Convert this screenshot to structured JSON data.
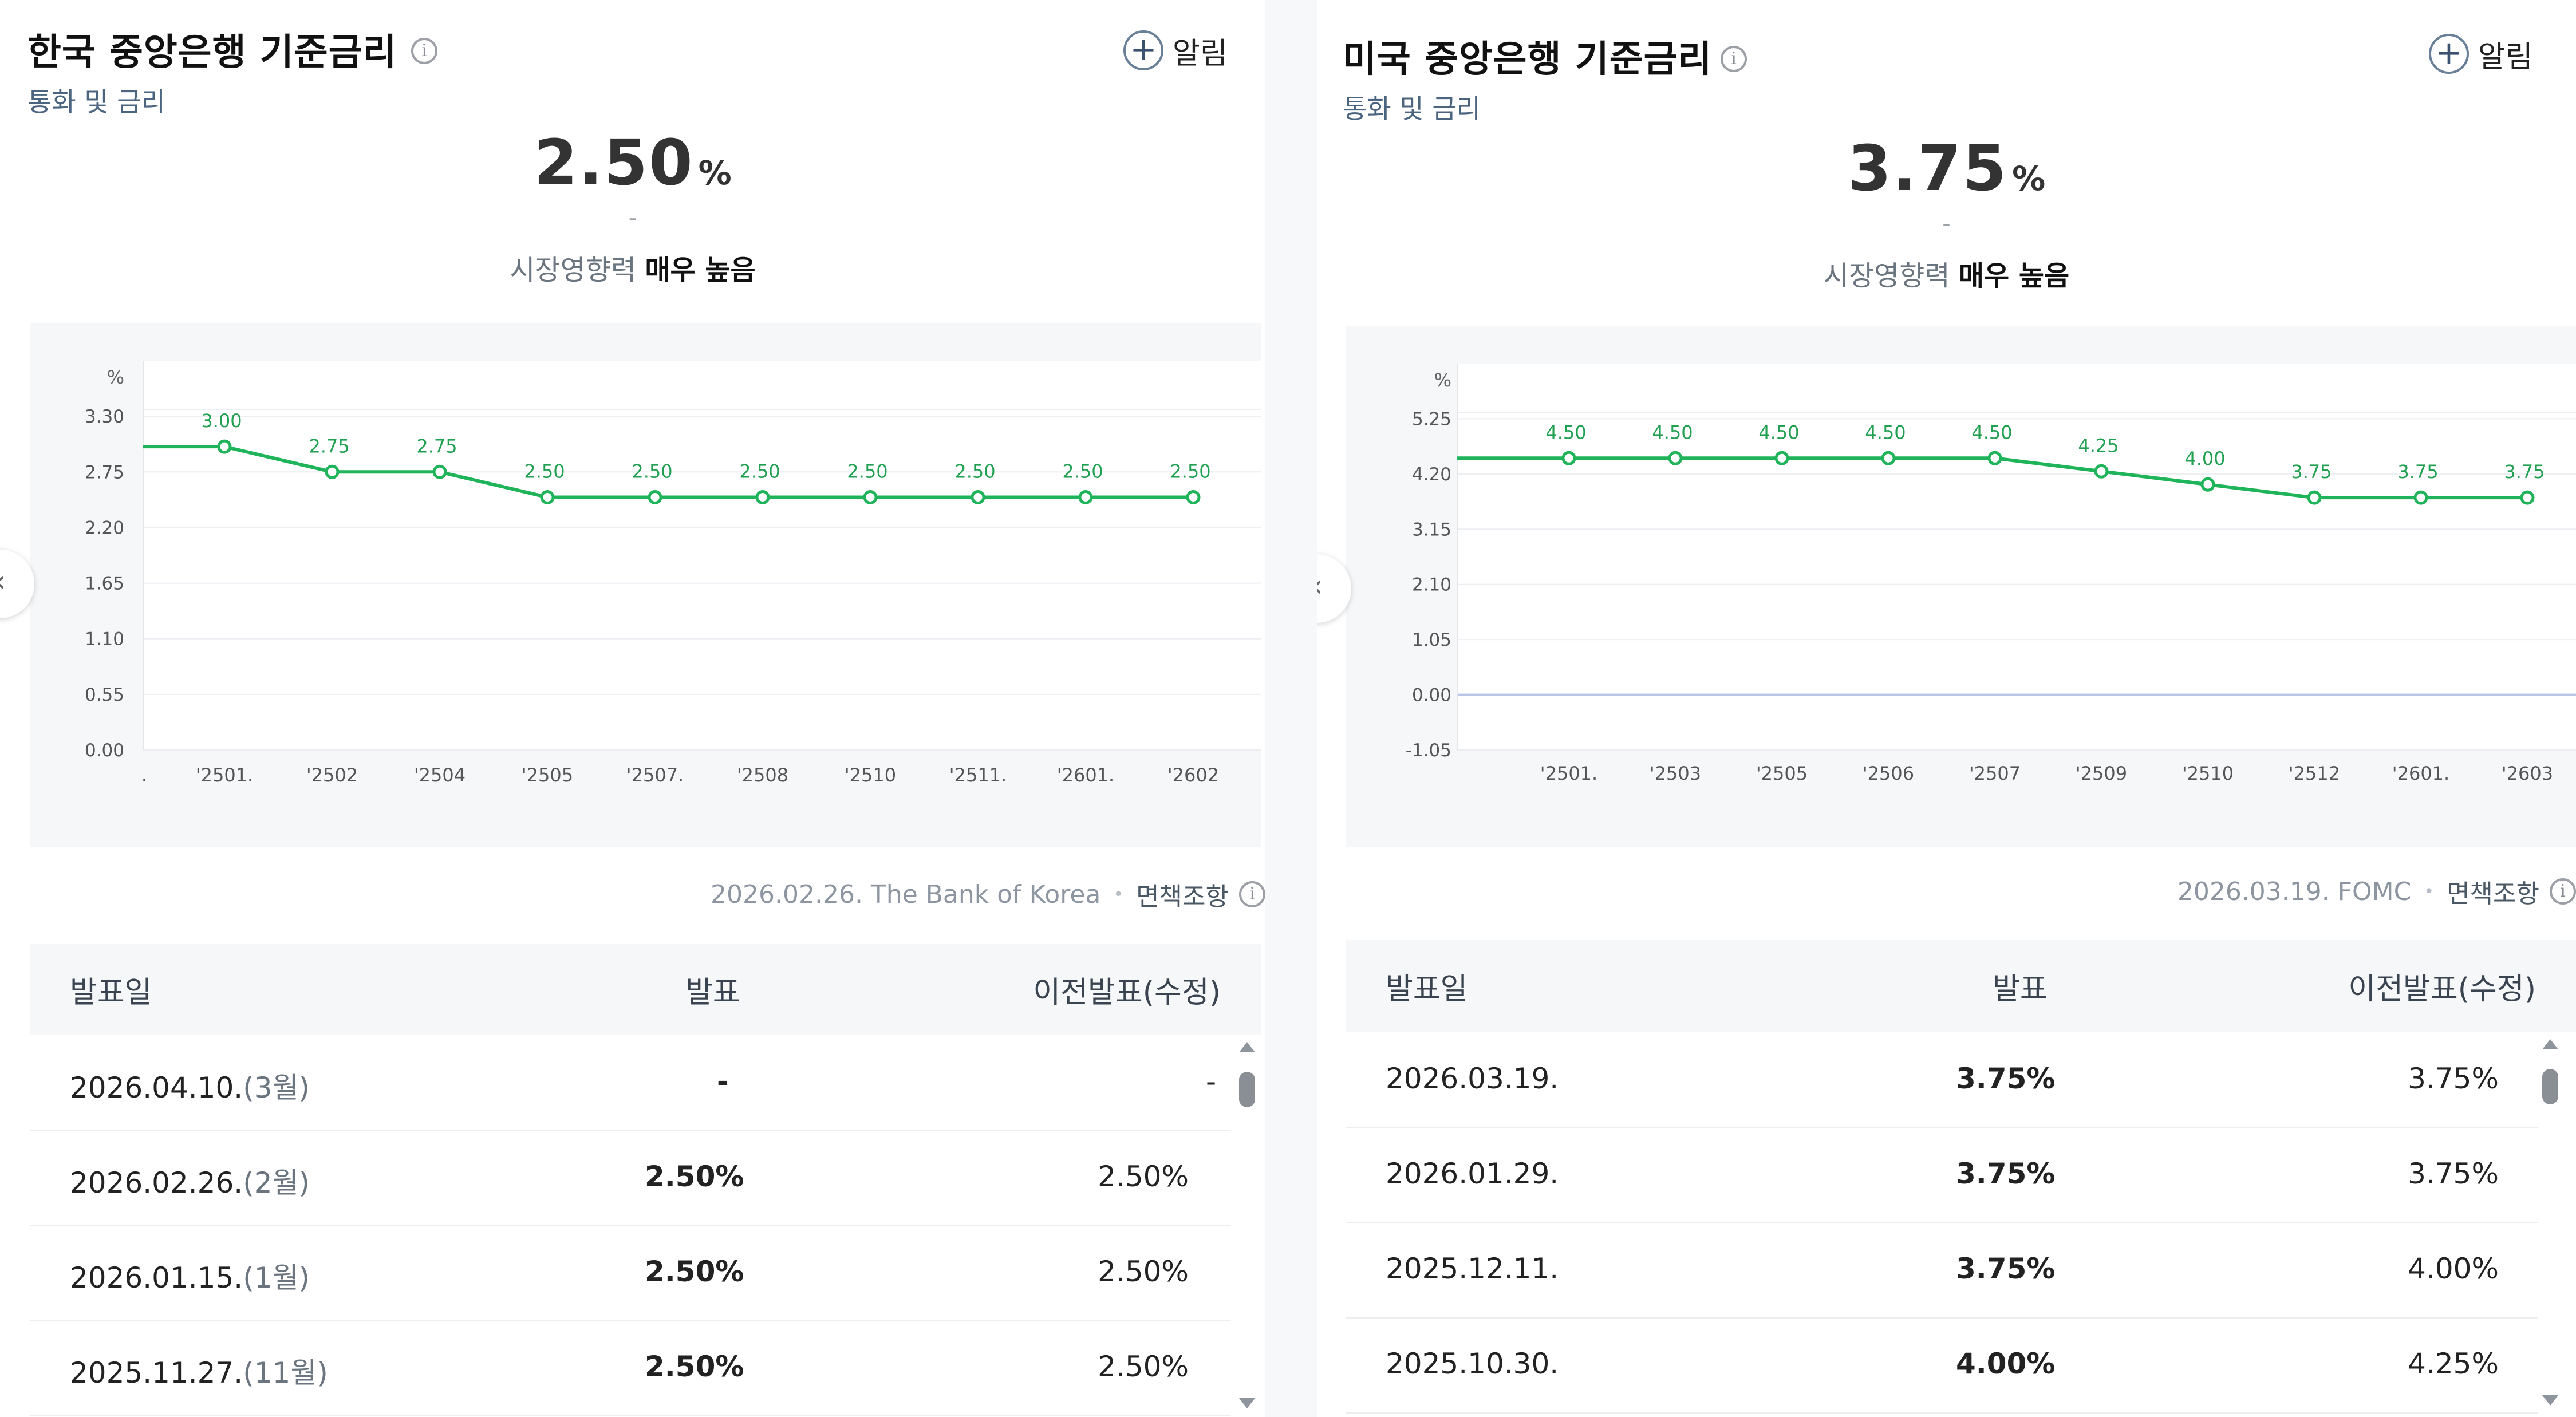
{
  "panels": [
    {
      "title": "한국 중앙은행 기준금리",
      "category": "통화 및 금리",
      "alert_label": "알림",
      "value": "2.50",
      "unit": "%",
      "change": "-",
      "impact_label": "시장영향력",
      "impact_value": "매우 높음",
      "source": "2026.02.26. The Bank of Korea",
      "disclaimer": "면책조항",
      "table_headers": {
        "date": "발표일",
        "actual": "발표",
        "previous": "이전발표(수정)"
      },
      "rows": [
        {
          "date": "2026.04.10.",
          "month": "(3월)",
          "actual": "-",
          "previous": "-"
        },
        {
          "date": "2026.02.26.",
          "month": "(2월)",
          "actual": "2.50%",
          "previous": "2.50%"
        },
        {
          "date": "2026.01.15.",
          "month": "(1월)",
          "actual": "2.50%",
          "previous": "2.50%"
        },
        {
          "date": "2025.11.27.",
          "month": "(11월)",
          "actual": "2.50%",
          "previous": "2.50%"
        }
      ]
    },
    {
      "title": "미국 중앙은행 기준금리",
      "category": "통화 및 금리",
      "alert_label": "알림",
      "value": "3.75",
      "unit": "%",
      "change": "-",
      "impact_label": "시장영향력",
      "impact_value": "매우 높음",
      "source": "2026.03.19. FOMC",
      "disclaimer": "면책조항",
      "table_headers": {
        "date": "발표일",
        "actual": "발표",
        "previous": "이전발표(수정)"
      },
      "rows": [
        {
          "date": "2026.03.19.",
          "month": "",
          "actual": "3.75%",
          "previous": "3.75%"
        },
        {
          "date": "2026.01.29.",
          "month": "",
          "actual": "3.75%",
          "previous": "3.75%"
        },
        {
          "date": "2025.12.11.",
          "month": "",
          "actual": "3.75%",
          "previous": "4.00%"
        },
        {
          "date": "2025.10.30.",
          "month": "",
          "actual": "4.00%",
          "previous": "4.25%"
        }
      ]
    }
  ],
  "chart_data": [
    {
      "type": "line",
      "ylabel": "%",
      "y_ticks": [
        "3.30",
        "2.75",
        "2.20",
        "1.65",
        "1.10",
        "0.55",
        "0.00"
      ],
      "y_tick_values": [
        3.3,
        2.75,
        2.2,
        1.65,
        1.1,
        0.55,
        0.0
      ],
      "ylim": [
        0.0,
        3.85
      ],
      "x_leading_label": ".",
      "x": [
        "'2501.",
        "'2502",
        "'2504",
        "'2505",
        "'2507.",
        "'2508",
        "'2510",
        "'2511.",
        "'2601.",
        "'2602"
      ],
      "values": [
        3.0,
        2.75,
        2.75,
        2.5,
        2.5,
        2.5,
        2.5,
        2.5,
        2.5,
        2.5
      ],
      "value_labels": [
        "3.00",
        "2.75",
        "2.75",
        "2.50",
        "2.50",
        "2.50",
        "2.50",
        "2.50",
        "2.50",
        "2.50"
      ],
      "start_value": 3.0,
      "line_color": "#1fb35a",
      "grid": true
    },
    {
      "type": "line",
      "ylabel": "%",
      "y_ticks": [
        "5.25",
        "4.20",
        "3.15",
        "2.10",
        "1.05",
        "0.00",
        "-1.05"
      ],
      "y_tick_values": [
        5.25,
        4.2,
        3.15,
        2.1,
        1.05,
        0.0,
        -1.05
      ],
      "ylim": [
        -1.05,
        6.3
      ],
      "x": [
        "'2501.",
        "'2503",
        "'2505",
        "'2506",
        "'2507",
        "'2509",
        "'2510",
        "'2512",
        "'2601.",
        "'2603"
      ],
      "values": [
        4.5,
        4.5,
        4.5,
        4.5,
        4.5,
        4.25,
        4.0,
        3.75,
        3.75,
        3.75
      ],
      "value_labels": [
        "4.50",
        "4.50",
        "4.50",
        "4.50",
        "4.50",
        "4.25",
        "4.00",
        "3.75",
        "3.75",
        "3.75"
      ],
      "start_value": 4.5,
      "line_color": "#1fb35a",
      "zero_line_color": "#b9c7e4",
      "grid": true
    }
  ],
  "nav": {
    "prev_glyph": "‹"
  }
}
